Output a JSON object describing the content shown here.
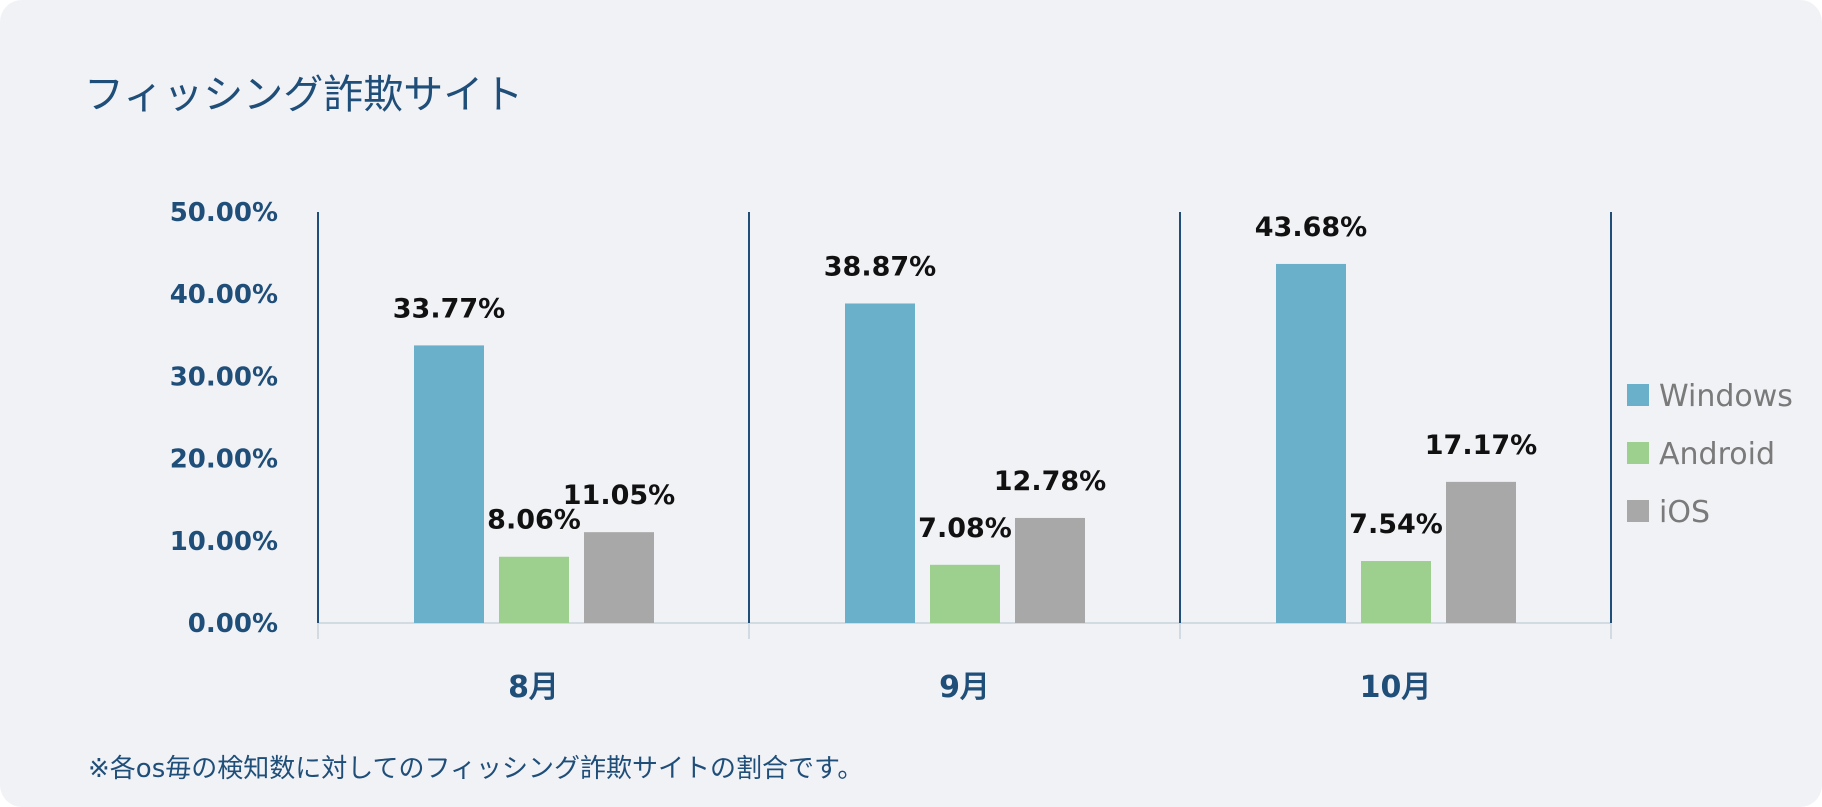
{
  "title": "フィッシング詐欺サイト",
  "footnote": "※各os毎の検知数に対してのフィッシング詐欺サイトの割合です。",
  "colors": {
    "windows": "#6ab0cb",
    "android": "#9dd08e",
    "ios": "#a8a8a8",
    "axis_text": "#1f4e79",
    "label_text": "#111111",
    "legend_text": "#7a7a7a",
    "background": "#f1f2f6"
  },
  "chart_data": {
    "type": "bar",
    "categories": [
      "8月",
      "9月",
      "10月"
    ],
    "series": [
      {
        "name": "Windows",
        "values": [
          33.77,
          38.87,
          43.68
        ],
        "labels": [
          "33.77%",
          "38.87%",
          "43.68%"
        ]
      },
      {
        "name": "Android",
        "values": [
          8.06,
          7.08,
          7.54
        ],
        "labels": [
          "8.06%",
          "7.08%",
          "7.54%"
        ]
      },
      {
        "name": "iOS",
        "values": [
          11.05,
          12.78,
          17.17
        ],
        "labels": [
          "11.05%",
          "12.78%",
          "17.17%"
        ]
      }
    ],
    "yticks": [
      "0.00%",
      "10.00%",
      "20.00%",
      "30.00%",
      "40.00%",
      "50.00%"
    ],
    "ylim": [
      0,
      50
    ],
    "legend_position": "right",
    "grid": false
  }
}
